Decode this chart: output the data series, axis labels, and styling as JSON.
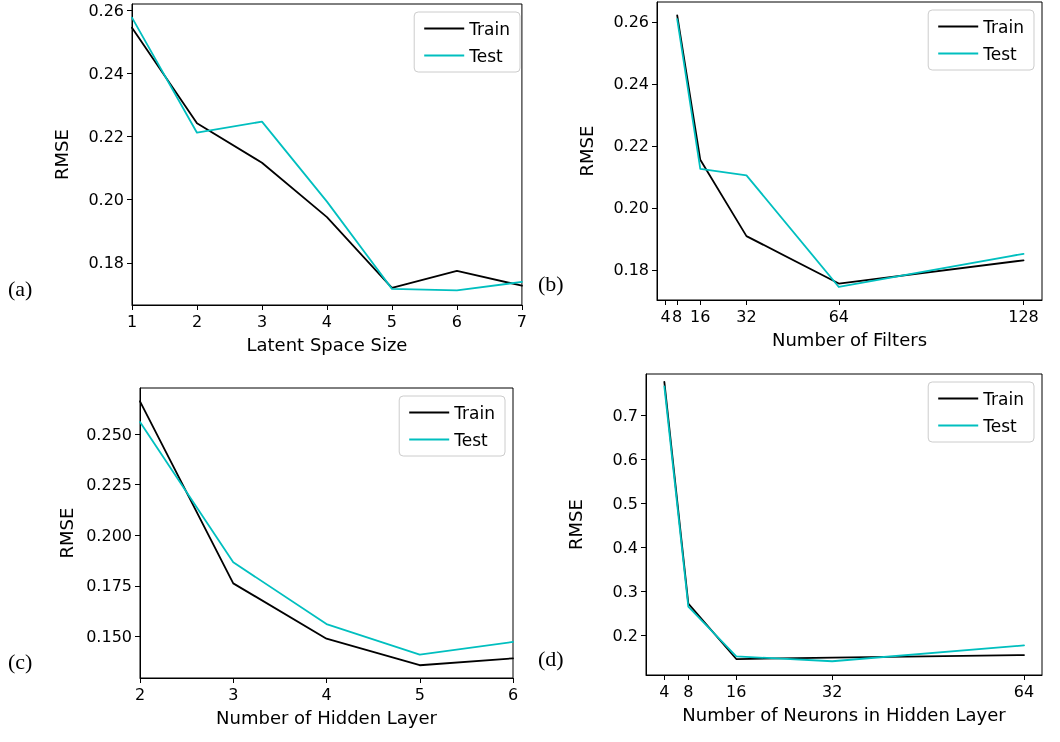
{
  "chart_data": [
    {
      "type": "line",
      "xlabel": "Latent Space Size",
      "ylabel": "RMSE",
      "annotations": [
        "(a)"
      ],
      "x": [
        1,
        2,
        3,
        4,
        5,
        6,
        7
      ],
      "xlim": [
        1,
        7
      ],
      "xticks": [
        1,
        2,
        3,
        4,
        5,
        6,
        7
      ],
      "ylim": [
        0.1667,
        0.2619
      ],
      "yticks": [
        {
          "value": 0.18,
          "label": "0.18"
        },
        {
          "value": 0.2,
          "label": "0.20"
        },
        {
          "value": 0.22,
          "label": "0.22"
        },
        {
          "value": 0.24,
          "label": "0.24"
        },
        {
          "value": 0.26,
          "label": "0.26"
        }
      ],
      "legend": "top right",
      "grid": false,
      "series": [
        {
          "name": "Train",
          "color": "#000000",
          "values": [
            0.2544,
            0.2242,
            0.2117,
            0.1945,
            0.1721,
            0.1775,
            0.1728
          ]
        },
        {
          "name": "Test",
          "color": "#00bfbf",
          "values": [
            0.2576,
            0.2212,
            0.2247,
            0.1994,
            0.1718,
            0.1713,
            0.174
          ]
        }
      ]
    },
    {
      "type": "line",
      "xlabel": "Number of Filters",
      "ylabel": "RMSE",
      "annotations": [
        "(b)"
      ],
      "x": [
        8,
        16,
        32,
        64,
        128
      ],
      "xlim": [
        1,
        134.4
      ],
      "xticks": [
        4,
        8,
        16,
        32,
        64,
        128
      ],
      "ylim": [
        0.1703,
        0.2664
      ],
      "yticks": [
        {
          "value": 0.18,
          "label": "0.18"
        },
        {
          "value": 0.2,
          "label": "0.20"
        },
        {
          "value": 0.22,
          "label": "0.22"
        },
        {
          "value": 0.24,
          "label": "0.24"
        },
        {
          "value": 0.26,
          "label": "0.26"
        }
      ],
      "legend": "top right",
      "grid": false,
      "series": [
        {
          "name": "Train",
          "color": "#000000",
          "values": [
            0.2621,
            0.2155,
            0.1909,
            0.1756,
            0.1831
          ]
        },
        {
          "name": "Test",
          "color": "#00bfbf",
          "values": [
            0.2609,
            0.2126,
            0.2105,
            0.1745,
            0.1852
          ]
        }
      ]
    },
    {
      "type": "line",
      "xlabel": "Number of Hidden Layer",
      "ylabel": "RMSE",
      "annotations": [
        "(c)"
      ],
      "x": [
        2,
        3,
        4,
        5,
        6
      ],
      "xlim": [
        2,
        6
      ],
      "xticks": [
        2,
        3,
        4,
        5,
        6
      ],
      "ylim": [
        0.1296,
        0.2727
      ],
      "yticks": [
        {
          "value": 0.15,
          "label": "0.150"
        },
        {
          "value": 0.175,
          "label": "0.175"
        },
        {
          "value": 0.2,
          "label": "0.200"
        },
        {
          "value": 0.225,
          "label": "0.225"
        },
        {
          "value": 0.25,
          "label": "0.250"
        }
      ],
      "legend": "top right",
      "grid": false,
      "series": [
        {
          "name": "Train",
          "color": "#000000",
          "values": [
            0.2661,
            0.1763,
            0.149,
            0.1359,
            0.1393
          ]
        },
        {
          "name": "Test",
          "color": "#00bfbf",
          "values": [
            0.2559,
            0.1867,
            0.1562,
            0.1411,
            0.1474
          ]
        }
      ]
    },
    {
      "type": "line",
      "xlabel": "Number of Neurons in Hidden Layer",
      "ylabel": "RMSE",
      "annotations": [
        "(d)"
      ],
      "x": [
        4,
        8,
        16,
        32,
        64
      ],
      "xlim": [
        0.94,
        67
      ],
      "xticks": [
        4,
        8,
        16,
        32,
        64
      ],
      "ylim": [
        0.1097,
        0.794
      ],
      "yticks": [
        0.2,
        0.3,
        0.4,
        0.5,
        0.6,
        0.7
      ],
      "legend": "top right",
      "grid": false,
      "series": [
        {
          "name": "Train",
          "color": "#000000",
          "values": [
            0.776,
            0.272,
            0.146,
            0.149,
            0.155
          ]
        },
        {
          "name": "Test",
          "color": "#00bfbf",
          "values": [
            0.766,
            0.265,
            0.152,
            0.141,
            0.177
          ]
        }
      ]
    }
  ]
}
